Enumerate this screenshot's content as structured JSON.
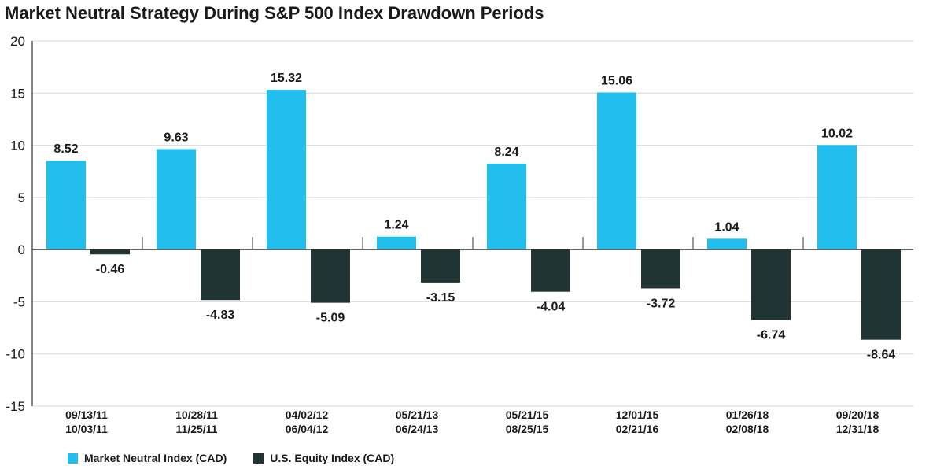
{
  "chart_data": {
    "type": "bar",
    "title": "Market Neutral Strategy During S&P 500 Index Drawdown Periods",
    "xlabel": "",
    "ylabel": "",
    "ylim": [
      -15,
      20
    ],
    "yticks": [
      20,
      15,
      10,
      5,
      0,
      -5,
      -10,
      -15
    ],
    "grid": true,
    "legend_position": "bottom-left",
    "categories": [
      [
        "09/13/11",
        "10/03/11"
      ],
      [
        "10/28/11",
        "11/25/11"
      ],
      [
        "04/02/12",
        "06/04/12"
      ],
      [
        "05/21/13",
        "06/24/13"
      ],
      [
        "05/21/15",
        "08/25/15"
      ],
      [
        "12/01/15",
        "02/21/16"
      ],
      [
        "01/26/18",
        "02/08/18"
      ],
      [
        "09/20/18",
        "12/31/18"
      ]
    ],
    "series": [
      {
        "name": "Market Neutral Index (CAD)",
        "color": "#22BEEE",
        "values": [
          8.52,
          9.63,
          15.32,
          1.24,
          8.24,
          15.06,
          1.04,
          10.02
        ],
        "labels": [
          "8.52",
          "9.63",
          "15.32",
          "1.24",
          "8.24",
          "15.06",
          "1.04",
          "10.02"
        ]
      },
      {
        "name": "U.S. Equity Index (CAD)",
        "color": "#203433",
        "values": [
          -0.46,
          -4.83,
          -5.09,
          -3.15,
          -4.04,
          -3.72,
          -6.74,
          -8.64
        ],
        "labels": [
          "-0.46",
          "-4.83",
          "-5.09",
          "-3.15",
          "-4.04",
          "-3.72",
          "-6.74",
          "-8.64"
        ]
      }
    ]
  }
}
